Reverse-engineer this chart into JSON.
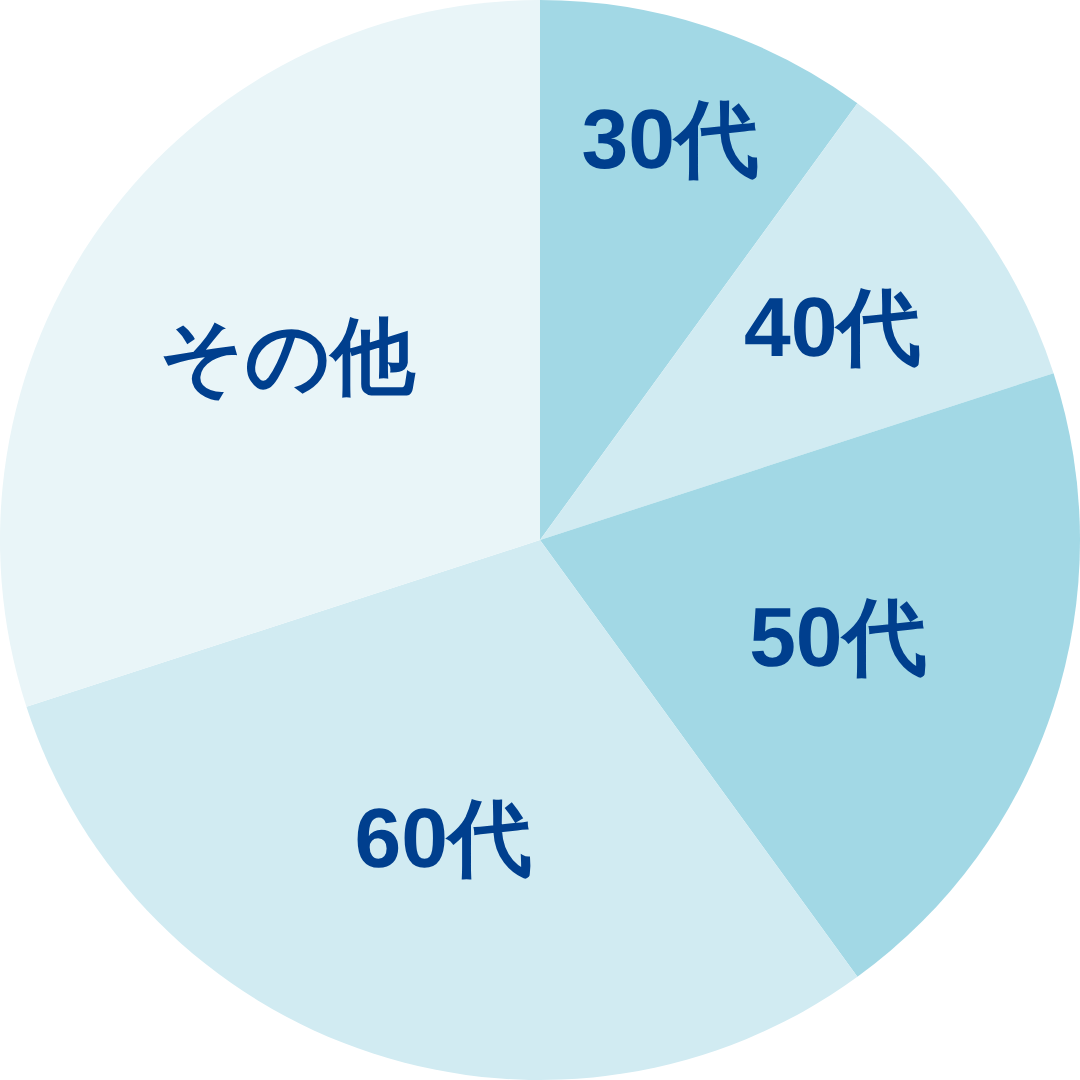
{
  "chart_data": {
    "type": "pie",
    "categories": [
      "30代",
      "40代",
      "50代",
      "60代",
      "その他"
    ],
    "values": [
      10,
      10,
      20,
      30,
      30
    ],
    "colors": [
      "#a2d8e5",
      "#d1ebf2",
      "#a2d8e5",
      "#d1ebf2",
      "#e9f5f8"
    ]
  }
}
